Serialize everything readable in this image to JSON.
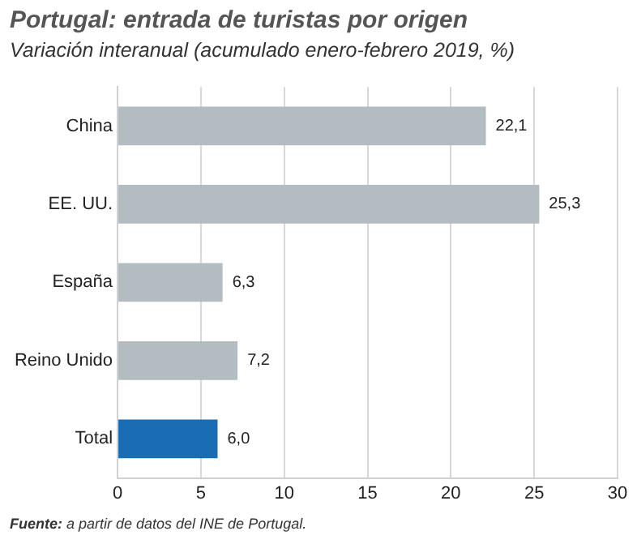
{
  "chart_data": {
    "type": "bar",
    "orientation": "horizontal",
    "title": "Portugal: entrada de turistas por origen",
    "subtitle": "Variación interanual (acumulado enero-febrero 2019, %)",
    "categories": [
      "China",
      "EE. UU.",
      "España",
      "Reino Unido",
      "Total"
    ],
    "values": [
      22.1,
      25.3,
      6.3,
      7.2,
      6.0
    ],
    "colors": [
      "#b3bdc1",
      "#b3bdc1",
      "#b3bdc1",
      "#b3bdc1",
      "#1b6db3"
    ],
    "value_labels": [
      "22,1",
      "25,3",
      "6,3",
      "7,2",
      "6,0"
    ],
    "xlim": [
      0,
      30
    ],
    "xticks": [
      0,
      5,
      10,
      15,
      20,
      25,
      30
    ],
    "grid": "x",
    "annotations": [
      "Fuente: a partir de datos del INE de Portugal."
    ]
  }
}
